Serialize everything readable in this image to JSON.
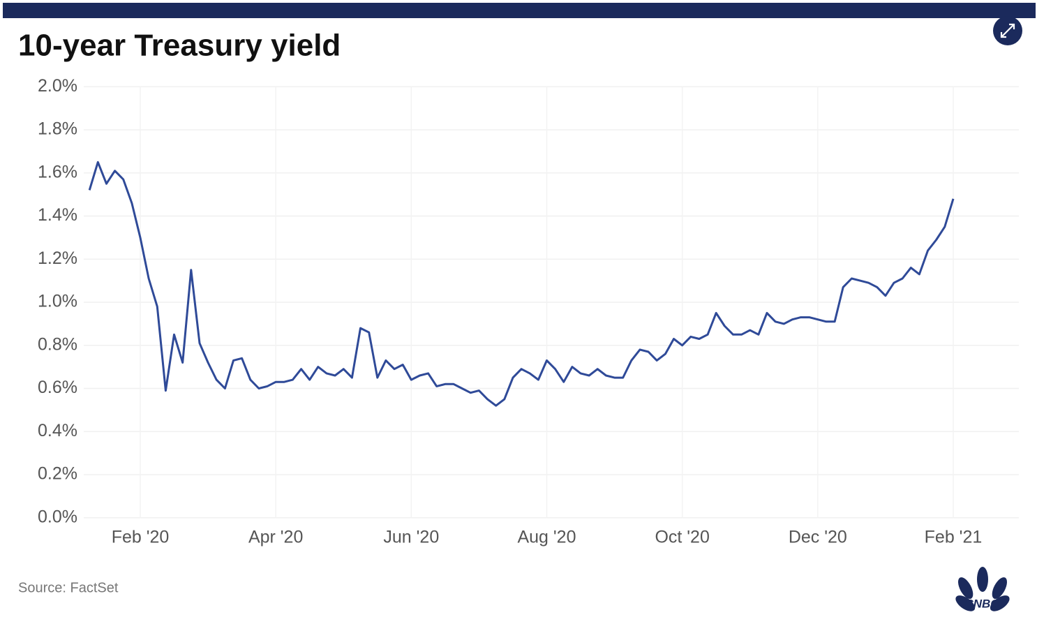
{
  "chart_data": {
    "type": "line",
    "title": "10-year Treasury yield",
    "source": "Source: FactSet",
    "logo": "CNBC",
    "color": "#2f4a98",
    "grid": true,
    "ylim": [
      0,
      2.0
    ],
    "yticks": [
      {
        "value": 0,
        "label": "0.0%"
      },
      {
        "value": 0.2,
        "label": "0.2%"
      },
      {
        "value": 0.4,
        "label": "0.4%"
      },
      {
        "value": 0.6,
        "label": "0.6%"
      },
      {
        "value": 0.8,
        "label": "0.8%"
      },
      {
        "value": 1.0,
        "label": "1.0%"
      },
      {
        "value": 1.2,
        "label": "1.2%"
      },
      {
        "value": 1.4,
        "label": "1.4%"
      },
      {
        "value": 1.6,
        "label": "1.6%"
      },
      {
        "value": 1.8,
        "label": "1.8%"
      },
      {
        "value": 2.0,
        "label": "2.0%"
      }
    ],
    "categories": [
      null,
      null,
      null,
      null,
      null,
      null,
      "Feb '20",
      null,
      null,
      null,
      null,
      null,
      null,
      null,
      null,
      null,
      null,
      null,
      null,
      null,
      null,
      null,
      "Apr '20",
      null,
      null,
      null,
      null,
      null,
      null,
      null,
      null,
      null,
      null,
      null,
      null,
      null,
      null,
      null,
      "Jun '20",
      null,
      null,
      null,
      null,
      null,
      null,
      null,
      null,
      null,
      null,
      null,
      null,
      null,
      null,
      null,
      "Aug '20",
      null,
      null,
      null,
      null,
      null,
      null,
      null,
      null,
      null,
      null,
      null,
      null,
      null,
      null,
      null,
      "Oct '20",
      null,
      null,
      null,
      null,
      null,
      null,
      null,
      null,
      null,
      null,
      null,
      null,
      null,
      null,
      null,
      "Dec '20",
      null,
      null,
      null,
      null,
      null,
      null,
      null,
      null,
      null,
      null,
      null,
      null,
      null,
      null,
      null,
      "Feb '21"
    ],
    "values": [
      1.52,
      1.65,
      1.55,
      1.61,
      1.57,
      1.46,
      1.3,
      1.11,
      0.98,
      0.59,
      0.85,
      0.72,
      1.15,
      0.81,
      0.72,
      0.64,
      0.6,
      0.73,
      0.74,
      0.64,
      0.6,
      0.61,
      0.63,
      0.63,
      0.64,
      0.69,
      0.64,
      0.7,
      0.67,
      0.66,
      0.69,
      0.65,
      0.88,
      0.86,
      0.65,
      0.73,
      0.69,
      0.71,
      0.64,
      0.66,
      0.67,
      0.61,
      0.62,
      0.62,
      0.6,
      0.58,
      0.59,
      0.55,
      0.52,
      0.55,
      0.65,
      0.69,
      0.67,
      0.64,
      0.73,
      0.69,
      0.63,
      0.7,
      0.67,
      0.66,
      0.69,
      0.66,
      0.65,
      0.65,
      0.73,
      0.78,
      0.77,
      0.73,
      0.76,
      0.83,
      0.8,
      0.84,
      0.83,
      0.85,
      0.95,
      0.89,
      0.85,
      0.85,
      0.87,
      0.85,
      0.95,
      0.91,
      0.9,
      0.92,
      0.93,
      0.93,
      0.92,
      0.91,
      0.91,
      1.07,
      1.11,
      1.1,
      1.09,
      1.07,
      1.03,
      1.09,
      1.11,
      1.16,
      1.13,
      1.24,
      1.29,
      1.35,
      1.48
    ]
  }
}
